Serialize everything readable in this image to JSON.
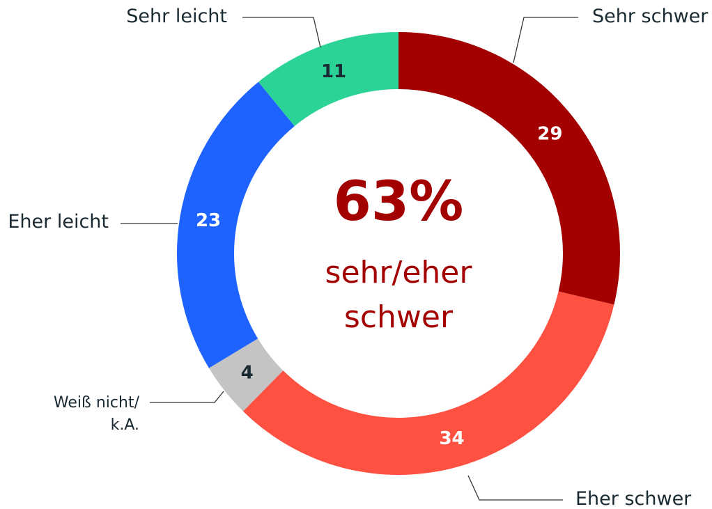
{
  "chart_data": {
    "type": "donut",
    "categories": [
      "Sehr schwer",
      "Eher schwer",
      "Weiß nicht/\nk.A.",
      "Eher leicht",
      "Sehr leicht"
    ],
    "values": [
      29,
      34,
      4,
      23,
      11
    ],
    "colors": [
      "#a30000",
      "#ff5142",
      "#c4c4c4",
      "#1e63ff",
      "#2cd396"
    ],
    "center_label": "63%",
    "center_text": "sehr/eher\nschwer"
  }
}
